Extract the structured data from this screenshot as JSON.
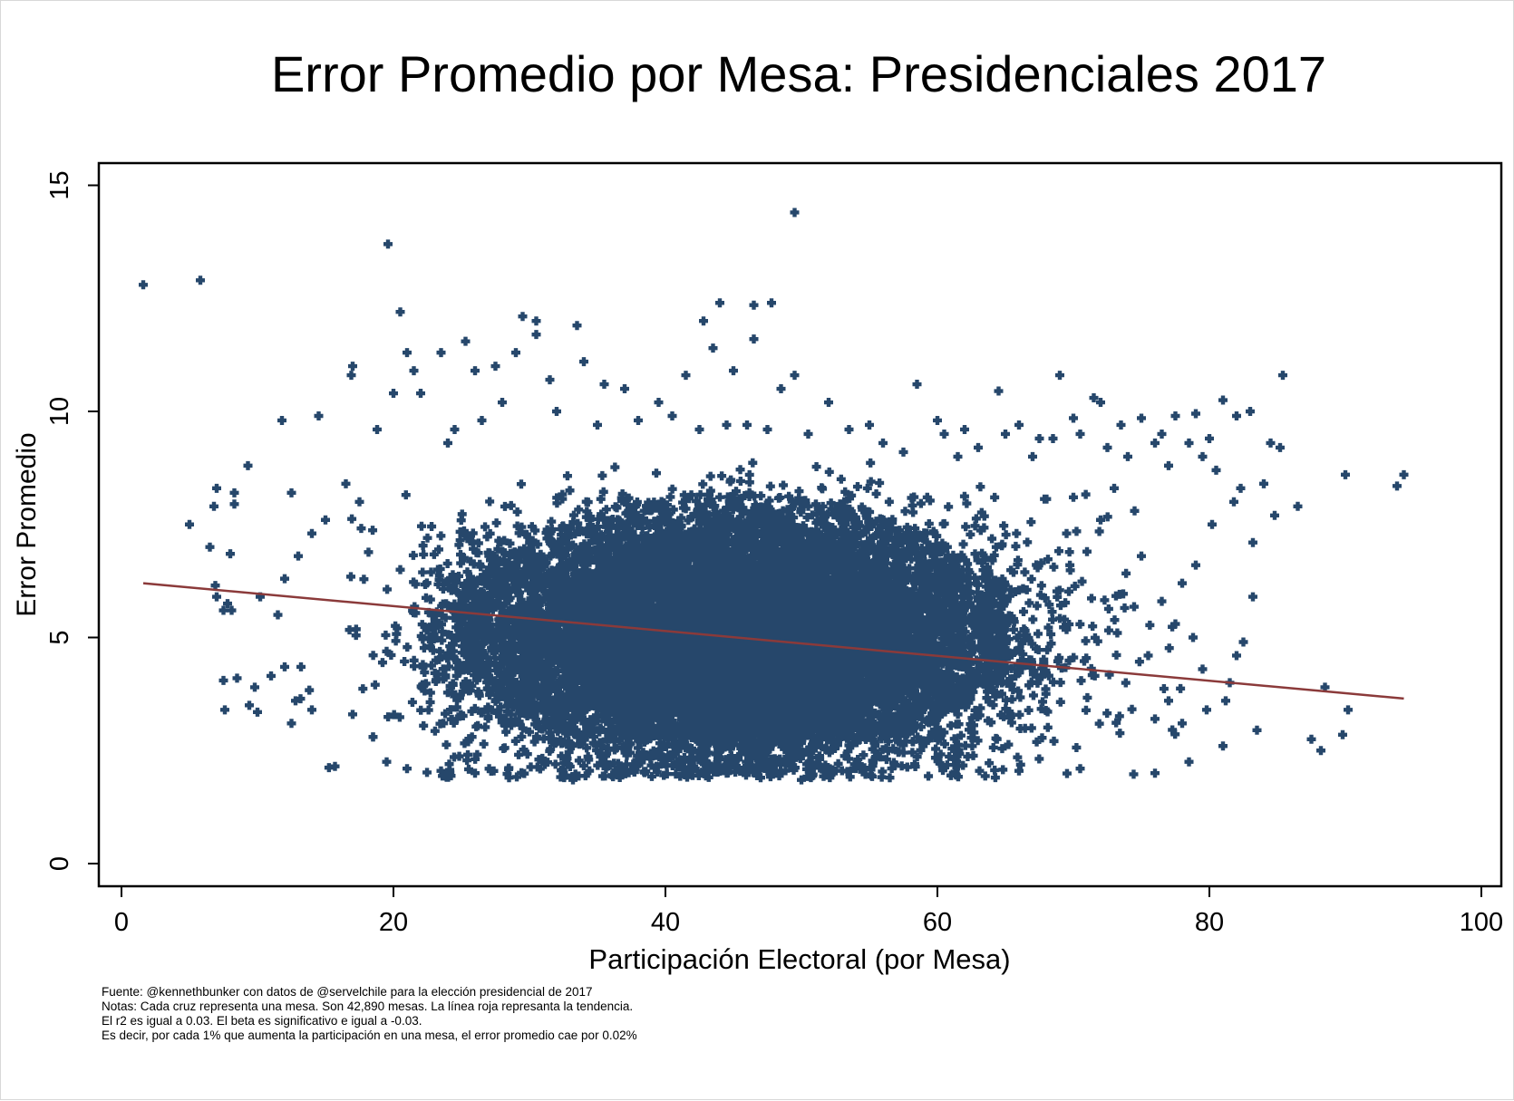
{
  "chart_data": {
    "type": "scatter",
    "title": "Error Promedio por Mesa: Presidenciales 2017",
    "xlabel": "Participación Electoral (por Mesa)",
    "ylabel": "Error Promedio",
    "xlim": [
      0,
      100
    ],
    "ylim": [
      0,
      15
    ],
    "x_ticks": [
      {
        "value": 0,
        "label": "0"
      },
      {
        "value": 20,
        "label": "20"
      },
      {
        "value": 40,
        "label": "40"
      },
      {
        "value": 60,
        "label": "60"
      },
      {
        "value": 80,
        "label": "80"
      },
      {
        "value": 100,
        "label": "100"
      }
    ],
    "y_ticks": [
      {
        "value": 0,
        "label": "0"
      },
      {
        "value": 5,
        "label": "5"
      },
      {
        "value": 10,
        "label": "10"
      },
      {
        "value": 15,
        "label": "15"
      }
    ],
    "grid": false,
    "marker": "cross",
    "point_color": "#26476b",
    "trend_color": "#8b3a3a",
    "n_points": 42890,
    "trend_line": {
      "x": [
        1.6,
        94.3
      ],
      "y": [
        6.2,
        3.65
      ]
    },
    "density_core": {
      "description_free": true,
      "clusters": [
        {
          "x": [
            25,
            65
          ],
          "y": [
            2.2,
            8.2
          ]
        },
        {
          "x": [
            33,
            58
          ],
          "y": [
            2.6,
            7.6
          ]
        }
      ]
    },
    "points": [
      [
        1.6,
        12.8
      ],
      [
        5.8,
        12.9
      ],
      [
        19.6,
        13.7
      ],
      [
        49.5,
        14.4
      ],
      [
        20.5,
        12.2
      ],
      [
        29.5,
        12.1
      ],
      [
        30.5,
        12.0
      ],
      [
        33.5,
        11.9
      ],
      [
        44.0,
        12.4
      ],
      [
        46.5,
        12.35
      ],
      [
        47.8,
        12.4
      ],
      [
        42.8,
        12.0
      ],
      [
        30.5,
        11.7
      ],
      [
        25.3,
        11.55
      ],
      [
        21.0,
        11.3
      ],
      [
        17.0,
        11.0
      ],
      [
        16.9,
        10.8
      ],
      [
        11.8,
        9.8
      ],
      [
        14.5,
        9.9
      ],
      [
        9.3,
        8.8
      ],
      [
        12.5,
        8.2
      ],
      [
        7.0,
        8.3
      ],
      [
        8.3,
        8.2
      ],
      [
        6.8,
        7.9
      ],
      [
        8.3,
        7.95
      ],
      [
        5.0,
        7.5
      ],
      [
        6.5,
        7.0
      ],
      [
        8.0,
        6.85
      ],
      [
        6.9,
        6.15
      ],
      [
        7.0,
        5.9
      ],
      [
        7.5,
        5.6
      ],
      [
        7.8,
        5.75
      ],
      [
        8.1,
        5.6
      ],
      [
        7.5,
        4.05
      ],
      [
        8.5,
        4.1
      ],
      [
        7.6,
        3.4
      ],
      [
        9.8,
        3.9
      ],
      [
        9.4,
        3.5
      ],
      [
        10.0,
        3.35
      ],
      [
        11.0,
        4.15
      ],
      [
        12.0,
        4.35
      ],
      [
        12.5,
        3.1
      ],
      [
        12.8,
        3.6
      ],
      [
        13.2,
        4.35
      ],
      [
        14.0,
        3.4
      ],
      [
        15.7,
        2.15
      ],
      [
        17.0,
        3.3
      ],
      [
        18.5,
        2.8
      ],
      [
        10.2,
        5.9
      ],
      [
        11.5,
        5.5
      ],
      [
        12.0,
        6.3
      ],
      [
        13.0,
        6.8
      ],
      [
        14.0,
        7.3
      ],
      [
        15.0,
        7.6
      ],
      [
        16.5,
        8.4
      ],
      [
        17.5,
        8.0
      ],
      [
        18.8,
        9.6
      ],
      [
        20.0,
        10.4
      ],
      [
        21.5,
        10.9
      ],
      [
        22.0,
        10.4
      ],
      [
        23.5,
        11.3
      ],
      [
        26.0,
        10.9
      ],
      [
        27.5,
        11.0
      ],
      [
        29.0,
        11.3
      ],
      [
        31.5,
        10.7
      ],
      [
        34.0,
        11.1
      ],
      [
        35.5,
        10.6
      ],
      [
        37.0,
        10.5
      ],
      [
        39.5,
        10.2
      ],
      [
        41.5,
        10.8
      ],
      [
        43.5,
        11.4
      ],
      [
        45.0,
        10.9
      ],
      [
        46.5,
        11.6
      ],
      [
        48.5,
        10.5
      ],
      [
        49.5,
        10.8
      ],
      [
        52.0,
        10.2
      ],
      [
        55.0,
        9.7
      ],
      [
        58.5,
        10.6
      ],
      [
        60.0,
        9.8
      ],
      [
        62.0,
        9.6
      ],
      [
        64.5,
        10.45
      ],
      [
        66.0,
        9.7
      ],
      [
        67.5,
        9.4
      ],
      [
        69.0,
        10.8
      ],
      [
        70.0,
        9.85
      ],
      [
        71.5,
        10.3
      ],
      [
        72.0,
        10.2
      ],
      [
        73.5,
        9.7
      ],
      [
        75.0,
        9.85
      ],
      [
        76.5,
        9.5
      ],
      [
        77.5,
        9.9
      ],
      [
        78.5,
        9.3
      ],
      [
        79.0,
        9.95
      ],
      [
        80.0,
        9.4
      ],
      [
        81.0,
        10.25
      ],
      [
        82.0,
        9.9
      ],
      [
        83.0,
        10.0
      ],
      [
        84.5,
        9.3
      ],
      [
        85.2,
        9.2
      ],
      [
        85.4,
        10.8
      ],
      [
        84.0,
        8.4
      ],
      [
        83.2,
        7.1
      ],
      [
        84.8,
        7.7
      ],
      [
        86.5,
        7.9
      ],
      [
        88.5,
        3.9
      ],
      [
        87.5,
        2.75
      ],
      [
        88.2,
        2.5
      ],
      [
        89.8,
        2.85
      ],
      [
        90.2,
        3.4
      ],
      [
        90.0,
        8.6
      ],
      [
        93.8,
        8.35
      ],
      [
        94.3,
        8.6
      ],
      [
        83.2,
        5.9
      ],
      [
        82.5,
        4.9
      ],
      [
        81.5,
        4.0
      ],
      [
        82.0,
        4.6
      ],
      [
        81.2,
        3.6
      ],
      [
        81.0,
        2.6
      ],
      [
        83.5,
        2.95
      ],
      [
        78.5,
        2.25
      ],
      [
        76.0,
        2.0
      ],
      [
        70.5,
        2.1
      ],
      [
        66.0,
        2.05
      ],
      [
        61.0,
        1.95
      ],
      [
        56.5,
        1.9
      ],
      [
        50.0,
        1.85
      ],
      [
        47.0,
        1.9
      ],
      [
        42.0,
        1.95
      ],
      [
        37.0,
        2.0
      ],
      [
        33.2,
        1.85
      ],
      [
        28.5,
        1.9
      ],
      [
        26.0,
        2.0
      ],
      [
        23.5,
        2.05
      ],
      [
        21.0,
        2.1
      ],
      [
        19.5,
        2.25
      ],
      [
        18.5,
        2.8
      ],
      [
        20.5,
        6.5
      ],
      [
        22.5,
        7.2
      ],
      [
        24.0,
        9.3
      ],
      [
        24.5,
        9.6
      ],
      [
        26.5,
        9.8
      ],
      [
        28.0,
        10.2
      ],
      [
        32.0,
        10.0
      ],
      [
        35.0,
        9.7
      ],
      [
        38.0,
        9.8
      ],
      [
        40.5,
        9.9
      ],
      [
        42.5,
        9.6
      ],
      [
        44.5,
        9.7
      ],
      [
        46.0,
        9.7
      ],
      [
        47.5,
        9.6
      ],
      [
        50.5,
        9.5
      ],
      [
        53.5,
        9.6
      ],
      [
        56.0,
        9.3
      ],
      [
        57.5,
        9.1
      ],
      [
        60.5,
        9.5
      ],
      [
        61.5,
        9.0
      ],
      [
        63.0,
        9.2
      ],
      [
        65.0,
        9.5
      ],
      [
        67.0,
        9.0
      ],
      [
        68.5,
        9.4
      ],
      [
        70.5,
        9.5
      ],
      [
        72.5,
        9.2
      ],
      [
        74.0,
        9.0
      ],
      [
        76.0,
        9.3
      ],
      [
        77.0,
        8.8
      ],
      [
        79.5,
        9.0
      ],
      [
        80.5,
        8.7
      ],
      [
        81.8,
        8.0
      ],
      [
        82.3,
        8.3
      ],
      [
        80.2,
        7.5
      ],
      [
        79.0,
        6.6
      ],
      [
        78.0,
        6.2
      ],
      [
        77.5,
        5.3
      ],
      [
        78.8,
        5.0
      ],
      [
        79.5,
        4.3
      ],
      [
        79.8,
        3.4
      ],
      [
        78.0,
        3.1
      ],
      [
        77.0,
        3.6
      ],
      [
        76.0,
        3.2
      ],
      [
        75.5,
        4.6
      ],
      [
        76.5,
        5.8
      ],
      [
        75.0,
        6.8
      ],
      [
        74.5,
        7.8
      ],
      [
        73.0,
        8.3
      ],
      [
        72.0,
        7.6
      ],
      [
        71.0,
        6.9
      ],
      [
        70.0,
        8.1
      ],
      [
        69.5,
        7.3
      ]
    ]
  }
}
